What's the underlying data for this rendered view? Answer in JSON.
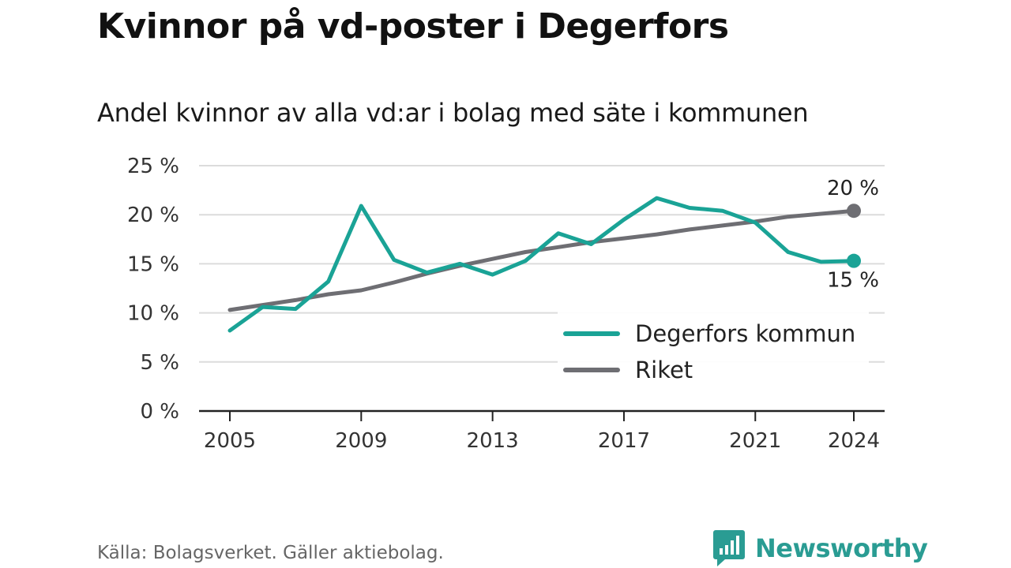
{
  "title": "Kvinnor på vd-poster i Degerfors",
  "subtitle": "Andel kvinnor av alla vd:ar i bolag med säte i kommunen",
  "source": "Källa: Bolagsverket. Gäller aktiebolag.",
  "brand": "Newsworthy",
  "brand_icon": "newsworthy-logo-icon",
  "chart_data": {
    "type": "line",
    "x": [
      2005,
      2006,
      2007,
      2008,
      2009,
      2010,
      2011,
      2012,
      2013,
      2014,
      2015,
      2016,
      2017,
      2018,
      2019,
      2020,
      2021,
      2022,
      2023,
      2024
    ],
    "xticks": [
      2005,
      2009,
      2013,
      2017,
      2021,
      2024
    ],
    "xtick_labels": [
      "2005",
      "2009",
      "2013",
      "2017",
      "2021",
      "2024"
    ],
    "yticks": [
      0,
      5,
      10,
      15,
      20,
      25
    ],
    "ytick_labels": [
      "0 %",
      "5 %",
      "10 %",
      "15 %",
      "20 %",
      "25 %"
    ],
    "ylim": [
      0,
      25
    ],
    "grid": "horizontal",
    "legend_position": "bottom-right",
    "series": [
      {
        "name": "Degerfors kommun",
        "color": "#1aa396",
        "values": [
          8.2,
          10.6,
          10.4,
          13.2,
          20.9,
          15.4,
          14.1,
          15.0,
          13.9,
          15.3,
          18.1,
          17.0,
          19.5,
          21.7,
          20.7,
          20.4,
          19.2,
          16.2,
          15.2,
          15.3
        ],
        "end_label": "15 %"
      },
      {
        "name": "Riket",
        "color": "#6e6e73",
        "values": [
          10.3,
          10.8,
          11.3,
          11.9,
          12.3,
          13.1,
          14.0,
          14.8,
          15.5,
          16.2,
          16.7,
          17.2,
          17.6,
          18.0,
          18.5,
          18.9,
          19.3,
          19.8,
          20.1,
          20.4
        ],
        "end_label": "20 %"
      }
    ]
  }
}
